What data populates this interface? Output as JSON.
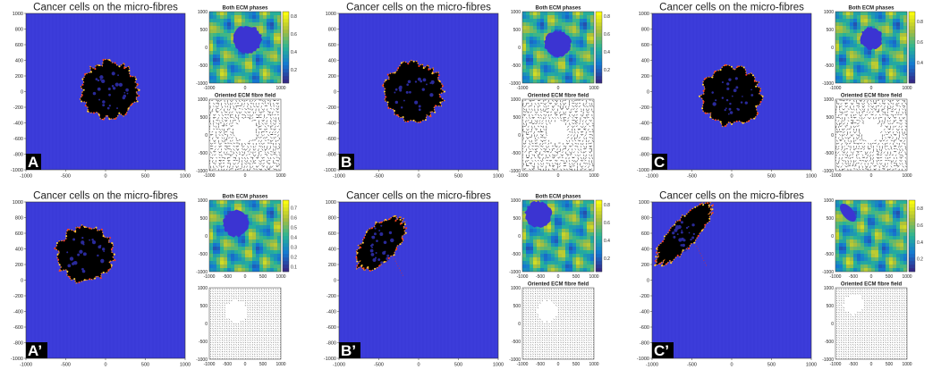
{
  "colors": {
    "background_field": "#3a3ad8",
    "cell_body": "#000000",
    "cell_edge": "#ff8a1c",
    "ecm_high": "#f6e03a",
    "ecm_mid": "#2fb59c",
    "ecm_low": "#3b34d2",
    "fibre": "#000000",
    "letter_bg": "#000000",
    "letter_fg": "#ffffff"
  },
  "chart_data": [
    {
      "type": "heatmap",
      "panel": "A",
      "label": "A",
      "main": {
        "title": "Cancer cells on the micro-fibres",
        "xlim": [
          -1000,
          1000
        ],
        "ylim": [
          -1000,
          1000
        ],
        "xticks": [
          -1000,
          -500,
          0,
          500,
          1000
        ],
        "yticks": [
          -1000,
          -800,
          -600,
          -400,
          -200,
          0,
          200,
          400,
          600,
          800,
          1000
        ],
        "tumor": {
          "cx": 50,
          "cy": 20,
          "r": 370,
          "elong": 1.0,
          "angle": 0,
          "tail": false
        }
      },
      "ecm": {
        "title": "Both ECM phases",
        "xlim": [
          -1000,
          1000
        ],
        "ylim": [
          -1000,
          1000
        ],
        "xticks": [
          -1000,
          0,
          1000
        ],
        "yticks": [
          -1000,
          -500,
          0,
          500,
          1000
        ],
        "colorbar_ticks": [
          0.2,
          0.4,
          0.6,
          0.8
        ],
        "colorbar_range": [
          0.05,
          0.85
        ],
        "hole": {
          "cx": 70,
          "cy": 220,
          "r": 400
        }
      },
      "fibre": {
        "title": "Oriented ECM fibre field",
        "xlim": [
          -1000,
          1000
        ],
        "ylim": [
          -1000,
          1000
        ],
        "xticks": [
          -1000,
          0,
          1000
        ],
        "yticks": [
          -1000,
          -500,
          0,
          500,
          1000
        ],
        "pattern": "random",
        "clear": {
          "cx": 0,
          "cy": 150,
          "r": 380
        }
      }
    },
    {
      "type": "heatmap",
      "panel": "B",
      "label": "B",
      "main": {
        "title": "Cancer cells on the micro-fibres",
        "xlim": [
          -1000,
          1000
        ],
        "ylim": [
          -1000,
          1000
        ],
        "xticks": [
          -1000,
          -500,
          0,
          500,
          1000
        ],
        "yticks": [
          -1000,
          -800,
          -600,
          -400,
          -200,
          0,
          200,
          400,
          600,
          800,
          1000
        ],
        "tumor": {
          "cx": -60,
          "cy": 0,
          "r": 380,
          "elong": 1.0,
          "angle": 0,
          "tail": false
        }
      },
      "ecm": {
        "title": "Both ECM phases",
        "xlim": [
          -1000,
          1000
        ],
        "ylim": [
          -1000,
          1000
        ],
        "xticks": [
          -1000,
          0,
          1000
        ],
        "yticks": [
          -1000,
          -500,
          0,
          500,
          1000
        ],
        "colorbar_ticks": [
          0.2,
          0.4,
          0.6,
          0.8
        ],
        "colorbar_range": [
          0.05,
          0.85
        ],
        "hole": {
          "cx": 0,
          "cy": 100,
          "r": 380
        }
      },
      "fibre": {
        "title": "Oriented ECM fibre field",
        "xlim": [
          -1000,
          1000
        ],
        "ylim": [
          -1000,
          1000
        ],
        "xticks": [
          -1000,
          0,
          1000
        ],
        "yticks": [
          -1000,
          -500,
          0,
          500,
          1000
        ],
        "pattern": "random",
        "clear": {
          "cx": 0,
          "cy": 100,
          "r": 380
        }
      }
    },
    {
      "type": "heatmap",
      "panel": "C",
      "label": "C",
      "main": {
        "title": "Cancer cells on the micro-fibres",
        "xlim": [
          -1000,
          1000
        ],
        "ylim": [
          -1000,
          1000
        ],
        "xticks": [
          -1000,
          -500,
          0,
          500,
          1000
        ],
        "yticks": [
          -1000,
          -800,
          -600,
          -400,
          -200,
          0,
          200,
          400,
          600,
          800,
          1000
        ],
        "tumor": {
          "cx": 0,
          "cy": -60,
          "r": 380,
          "elong": 1.0,
          "angle": 0,
          "tail": false
        }
      },
      "ecm": {
        "title": "Both ECM phases",
        "xlim": [
          -1000,
          1000
        ],
        "ylim": [
          -1000,
          1000
        ],
        "xticks": [
          -1000,
          0,
          1000
        ],
        "yticks": [
          -1000,
          -500,
          0,
          500,
          1000
        ],
        "colorbar_ticks": [
          0.4,
          0.6,
          0.8
        ],
        "colorbar_range": [
          0.2,
          0.9
        ],
        "hole": {
          "cx": 0,
          "cy": 250,
          "r": 320
        }
      },
      "fibre": {
        "title": "Oriented ECM fibre field",
        "xlim": [
          -1000,
          1000
        ],
        "ylim": [
          -1000,
          1000
        ],
        "xticks": [
          -1000,
          0,
          1000
        ],
        "yticks": [
          -1000,
          -500,
          0,
          500,
          1000
        ],
        "pattern": "random",
        "clear": {
          "cx": 0,
          "cy": 150,
          "r": 380
        }
      }
    },
    {
      "type": "heatmap",
      "panel": "A'",
      "label": "A’",
      "main": {
        "title": "Cancer cells on the micro-fibres",
        "xlim": [
          -1000,
          1000
        ],
        "ylim": [
          -1000,
          1000
        ],
        "xticks": [
          -1000,
          -500,
          0,
          500,
          1000
        ],
        "yticks": [
          -1000,
          -800,
          -600,
          -400,
          -200,
          0,
          200,
          400,
          600,
          800,
          1000
        ],
        "tumor": {
          "cx": -260,
          "cy": 330,
          "r": 360,
          "elong": 1.0,
          "angle": 0,
          "tail": false
        }
      },
      "ecm": {
        "title": "Both ECM phases",
        "xlim": [
          -1000,
          1000
        ],
        "ylim": [
          -1000,
          1000
        ],
        "xticks": [
          -1000,
          -500,
          0,
          500,
          1000
        ],
        "yticks": [
          -1000,
          -500,
          0,
          500,
          1000
        ],
        "colorbar_ticks": [
          0.1,
          0.2,
          0.3,
          0.4,
          0.5,
          0.6,
          0.7
        ],
        "colorbar_range": [
          0.05,
          0.78
        ],
        "hole": {
          "cx": -250,
          "cy": 350,
          "r": 380
        }
      },
      "fibre": {
        "title": "",
        "xlim": [
          -1000,
          1000
        ],
        "ylim": [
          -1000,
          1000
        ],
        "xticks": [
          -1000,
          -500,
          0,
          500,
          1000
        ],
        "yticks": [
          -1000,
          -500,
          0,
          500,
          1000
        ],
        "pattern": "aligned",
        "clear": {
          "cx": -250,
          "cy": 350,
          "r": 370
        }
      }
    },
    {
      "type": "heatmap",
      "panel": "B'",
      "label": "B’",
      "main": {
        "title": "Cancer cells on the micro-fibres",
        "xlim": [
          -1000,
          1000
        ],
        "ylim": [
          -1000,
          1000
        ],
        "xticks": [
          -1000,
          -500,
          0,
          500,
          1000
        ],
        "yticks": [
          -1000,
          -800,
          -600,
          -400,
          -200,
          0,
          200,
          400,
          600,
          800,
          1000
        ],
        "tumor": {
          "cx": -480,
          "cy": 470,
          "r": 360,
          "elong": 1.55,
          "angle": 40,
          "tail": true
        }
      },
      "ecm": {
        "title": "Both ECM phases",
        "xlim": [
          -1000,
          1000
        ],
        "ylim": [
          -1000,
          1000
        ],
        "xticks": [
          -1000,
          -500,
          0,
          500,
          1000
        ],
        "yticks": [
          -1000,
          -500,
          0,
          500,
          1000
        ],
        "colorbar_ticks": [
          0.2,
          0.4,
          0.6,
          0.8
        ],
        "colorbar_range": [
          0.05,
          0.85
        ],
        "hole": {
          "cx": -550,
          "cy": 600,
          "r": 380
        }
      },
      "fibre": {
        "title": "Oriented ECM fibre field",
        "xlim": [
          -1000,
          1000
        ],
        "ylim": [
          -1000,
          1000
        ],
        "xticks": [
          -1000,
          -500,
          0,
          500,
          1000
        ],
        "yticks": [
          -1000,
          -500,
          0,
          500,
          1000
        ],
        "pattern": "aligned",
        "clear": {
          "cx": -300,
          "cy": 350,
          "r": 360
        }
      }
    },
    {
      "type": "heatmap",
      "panel": "C'",
      "label": "C’",
      "main": {
        "title": "Cancer cells on the micro-fibres",
        "xlim": [
          -1000,
          1000
        ],
        "ylim": [
          -1000,
          1000
        ],
        "xticks": [
          -1000,
          -500,
          0,
          500,
          1000
        ],
        "yticks": [
          -1000,
          -800,
          -600,
          -400,
          -200,
          0,
          200,
          400,
          600,
          800,
          1000
        ],
        "tumor": {
          "cx": -600,
          "cy": 600,
          "r": 330,
          "elong": 2.1,
          "angle": 42,
          "tail": true
        }
      },
      "ecm": {
        "title": "",
        "xlim": [
          -1000,
          1000
        ],
        "ylim": [
          -1000,
          1000
        ],
        "xticks": [
          -1000,
          -500,
          0,
          500,
          1000
        ],
        "yticks": [
          -1000,
          -500,
          0,
          500,
          1000
        ],
        "colorbar_ticks": [
          0.2,
          0.4,
          0.6,
          0.8
        ],
        "colorbar_range": [
          0.05,
          0.9
        ],
        "hole": {
          "cx": -650,
          "cy": 650,
          "r": 300,
          "elong": 2.0,
          "angle": 40
        }
      },
      "fibre": {
        "title": "Oriented ECM fibre field",
        "xlim": [
          -1000,
          1000
        ],
        "ylim": [
          -1000,
          1000
        ],
        "xticks": [
          -1000,
          -500,
          0,
          500,
          1000
        ],
        "yticks": [
          -1000,
          -500,
          0,
          500,
          1000
        ],
        "pattern": "aligned",
        "clear": {
          "cx": -500,
          "cy": 550,
          "r": 330
        }
      }
    }
  ]
}
